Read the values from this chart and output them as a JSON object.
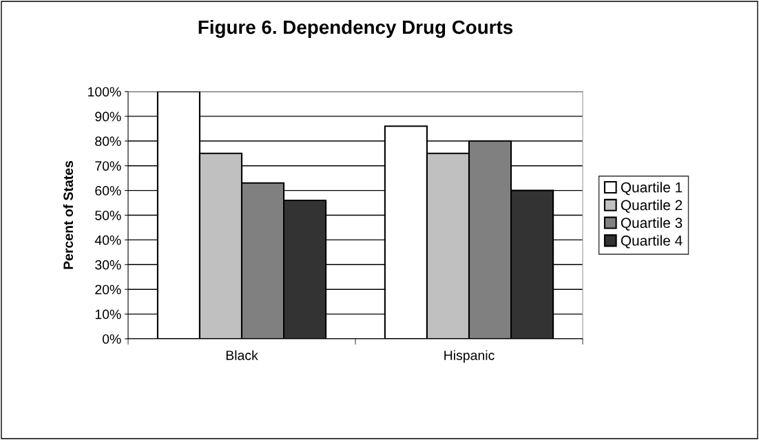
{
  "chart_data": {
    "type": "bar",
    "title": "Figure 6. Dependency Drug Courts",
    "ylabel": "Percent of States",
    "categories": [
      "Black",
      "Hispanic"
    ],
    "series": [
      {
        "name": "Quartile 1",
        "color": "#ffffff",
        "values": [
          100,
          86
        ]
      },
      {
        "name": "Quartile 2",
        "color": "#c0c0c0",
        "values": [
          75,
          75
        ]
      },
      {
        "name": "Quartile 3",
        "color": "#808080",
        "values": [
          63,
          80
        ]
      },
      {
        "name": "Quartile 4",
        "color": "#333333",
        "values": [
          56,
          60
        ]
      }
    ],
    "ylim": [
      0,
      100
    ],
    "yticks": [
      {
        "value": 0,
        "label": "0%"
      },
      {
        "value": 10,
        "label": "10%"
      },
      {
        "value": 20,
        "label": "20%"
      },
      {
        "value": 30,
        "label": "30%"
      },
      {
        "value": 40,
        "label": "40%"
      },
      {
        "value": 50,
        "label": "50%"
      },
      {
        "value": 60,
        "label": "60%"
      },
      {
        "value": 70,
        "label": "70%"
      },
      {
        "value": 80,
        "label": "80%"
      },
      {
        "value": 90,
        "label": "90%"
      },
      {
        "value": 100,
        "label": "100%"
      }
    ],
    "grid": "y",
    "legend": "right"
  }
}
